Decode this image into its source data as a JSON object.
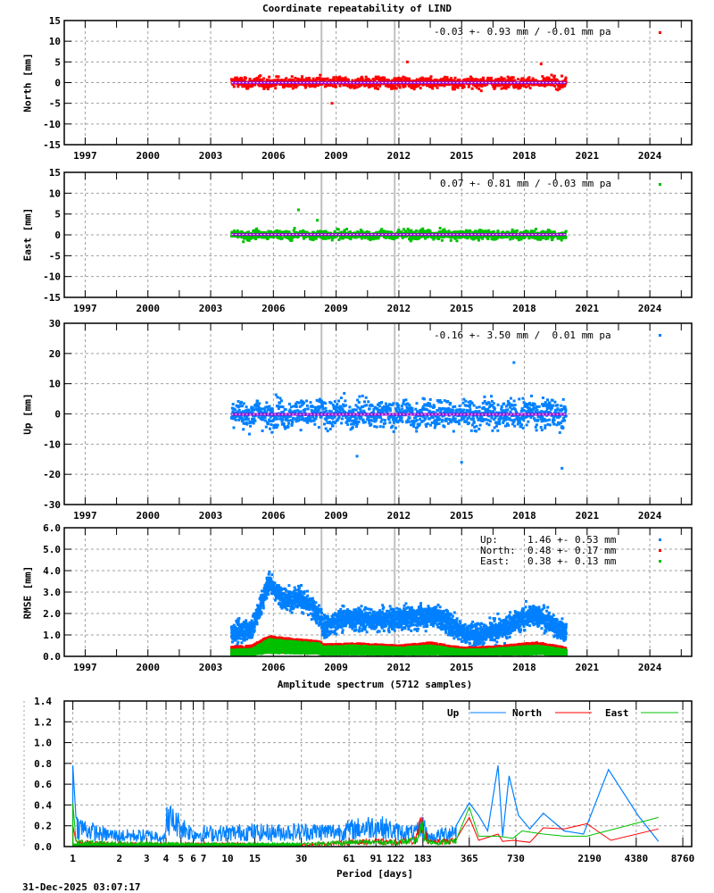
{
  "figure": {
    "title": "Coordinate repeatability of LIND",
    "timestamp": "31-Dec-2025 03:07:17"
  },
  "colors": {
    "north": "#ff0000",
    "east": "#00c000",
    "up": "#0080ff",
    "mean_line": "#9400d3",
    "break_line": "#c0c0c0",
    "grid": "#a0a0a0"
  },
  "chart_data": [
    {
      "type": "scatter",
      "panel": "north",
      "ylabel": "North [mm]",
      "ylim": [
        -15,
        15
      ],
      "yticks": [
        15,
        10,
        5,
        0,
        -5,
        -10,
        -15
      ],
      "xlim": [
        1996.0,
        2026.0
      ],
      "xticks": [
        1997,
        2000,
        2003,
        2006,
        2009,
        2012,
        2015,
        2018,
        2021,
        2024
      ],
      "data_range": [
        2004.0,
        2020.0
      ],
      "stats_label": "-0.03 +- 0.93 mm / -0.01 mm pa",
      "mean": -0.03,
      "std": 0.93,
      "trend_mm_pa": -0.01,
      "typical_spread": [
        -3,
        3
      ],
      "outliers": [
        [
          2008.8,
          -5.0
        ],
        [
          2012.4,
          5.0
        ],
        [
          2018.8,
          4.5
        ]
      ],
      "grid": true
    },
    {
      "type": "scatter",
      "panel": "east",
      "ylabel": "East [mm]",
      "ylim": [
        -15,
        15
      ],
      "yticks": [
        15,
        10,
        5,
        0,
        -5,
        -10,
        -15
      ],
      "xlim": [
        1996.0,
        2026.0
      ],
      "xticks": [
        1997,
        2000,
        2003,
        2006,
        2009,
        2012,
        2015,
        2018,
        2021,
        2024
      ],
      "data_range": [
        2004.0,
        2020.0
      ],
      "stats_label": "0.07 +- 0.81 mm / -0.03 mm pa",
      "mean": 0.07,
      "std": 0.81,
      "trend_mm_pa": -0.03,
      "typical_spread": [
        -2.5,
        2.5
      ],
      "outliers": [
        [
          2007.2,
          6.0
        ],
        [
          2008.1,
          3.5
        ]
      ],
      "grid": true
    },
    {
      "type": "scatter",
      "panel": "up",
      "ylabel": "Up [mm]",
      "ylim": [
        -30,
        30
      ],
      "yticks": [
        30,
        20,
        10,
        0,
        -10,
        -20,
        -30
      ],
      "xlim": [
        1996.0,
        2026.0
      ],
      "xticks": [
        1997,
        2000,
        2003,
        2006,
        2009,
        2012,
        2015,
        2018,
        2021,
        2024
      ],
      "data_range": [
        2004.0,
        2020.0
      ],
      "stats_label": "-0.16 +- 3.50 mm /  0.01 mm pa",
      "mean": -0.16,
      "std": 3.5,
      "trend_mm_pa": 0.01,
      "typical_spread": [
        -9,
        9
      ],
      "outliers": [
        [
          2017.5,
          17.0
        ],
        [
          2015.0,
          -16.0
        ],
        [
          2019.8,
          -18.0
        ],
        [
          2010.0,
          -14.0
        ]
      ],
      "grid": true
    },
    {
      "type": "scatter",
      "panel": "rmse",
      "ylabel": "RMSE [mm]",
      "ylim": [
        0.0,
        6.0
      ],
      "yticks": [
        "6.0",
        "5.0",
        "4.0",
        "3.0",
        "2.0",
        "1.0",
        "0.0"
      ],
      "xlim": [
        1996.0,
        2026.0
      ],
      "xticks": [
        1997,
        2000,
        2003,
        2006,
        2009,
        2012,
        2015,
        2018,
        2021,
        2024
      ],
      "legend": [
        {
          "name": "Up:",
          "value": "1.46 +- 0.53 mm",
          "color": "#0080ff"
        },
        {
          "name": "North:",
          "value": "0.48 +- 0.17 mm",
          "color": "#ff0000"
        },
        {
          "name": "East:",
          "value": "0.38 +- 0.13 mm",
          "color": "#00c000"
        }
      ],
      "series": [
        {
          "name": "Up",
          "x": [
            2004.0,
            2005.0,
            2005.8,
            2006.5,
            2007.2,
            2008.2,
            2008.4,
            2009.5,
            2011.0,
            2012.5,
            2013.8,
            2015.0,
            2015.2,
            2016.5,
            2018.5,
            2020.0
          ],
          "values": [
            1.1,
            1.3,
            3.5,
            2.6,
            2.8,
            1.9,
            1.4,
            1.8,
            1.7,
            1.8,
            1.9,
            1.2,
            1.0,
            1.1,
            2.0,
            1.1
          ]
        },
        {
          "name": "North",
          "x": [
            2004.0,
            2005.0,
            2005.8,
            2007.0,
            2008.2,
            2008.4,
            2010.0,
            2012.0,
            2013.5,
            2015.0,
            2016.5,
            2018.6,
            2020.0
          ],
          "values": [
            0.45,
            0.5,
            0.95,
            0.8,
            0.7,
            0.55,
            0.6,
            0.5,
            0.65,
            0.4,
            0.45,
            0.65,
            0.4
          ]
        },
        {
          "name": "East",
          "x": [
            2004.0,
            2005.0,
            2005.8,
            2007.0,
            2008.2,
            2008.4,
            2010.0,
            2012.0,
            2013.5,
            2015.0,
            2016.5,
            2018.6,
            2020.0
          ],
          "values": [
            0.3,
            0.35,
            0.8,
            0.7,
            0.6,
            0.45,
            0.5,
            0.4,
            0.5,
            0.3,
            0.35,
            0.5,
            0.3
          ]
        }
      ],
      "grid": true
    },
    {
      "type": "line",
      "panel": "spectrum",
      "title": "Amplitude spectrum (5712 samples)",
      "xlabel": "Period [days]",
      "ylabel": "",
      "xscale": "log",
      "xlim": [
        0.88,
        10000
      ],
      "ylim": [
        0.0,
        1.4
      ],
      "yticks": [
        "1.4",
        "1.2",
        "1.0",
        "0.8",
        "0.6",
        "0.4",
        "0.2",
        "0.0"
      ],
      "xticks": [
        1,
        2,
        3,
        4,
        5,
        6,
        7,
        10,
        15,
        30,
        61,
        91,
        122,
        183,
        365,
        730,
        2190,
        4380,
        8760
      ],
      "legend_position": "top-right",
      "series": [
        {
          "name": "Up",
          "color": "#0080ff",
          "x": [
            1,
            1.05,
            1.5,
            2,
            3,
            4,
            4.05,
            6,
            10,
            14,
            15,
            20,
            30,
            50,
            61,
            91,
            122,
            165,
            183,
            200,
            250,
            300,
            365,
            420,
            480,
            560,
            600,
            660,
            760,
            900,
            1100,
            1500,
            2000,
            2900,
            4500,
            6100
          ],
          "values": [
            0.78,
            0.25,
            0.15,
            0.13,
            0.13,
            0.12,
            0.35,
            0.15,
            0.16,
            0.18,
            0.17,
            0.17,
            0.18,
            0.18,
            0.2,
            0.25,
            0.18,
            0.16,
            0.25,
            0.1,
            0.15,
            0.2,
            0.42,
            0.3,
            0.15,
            0.78,
            0.1,
            0.68,
            0.3,
            0.17,
            0.32,
            0.15,
            0.12,
            0.74,
            0.3,
            0.05
          ]
        },
        {
          "name": "North",
          "color": "#ff0000",
          "x": [
            1,
            1.05,
            1.5,
            2,
            5,
            10,
            30,
            61,
            91,
            122,
            165,
            180,
            200,
            300,
            365,
            420,
            560,
            600,
            700,
            900,
            1100,
            1500,
            2100,
            3000,
            6100
          ],
          "values": [
            0.2,
            0.05,
            0.04,
            0.03,
            0.03,
            0.03,
            0.02,
            0.05,
            0.06,
            0.05,
            0.08,
            0.27,
            0.05,
            0.07,
            0.28,
            0.06,
            0.12,
            0.05,
            0.06,
            0.04,
            0.18,
            0.17,
            0.22,
            0.06,
            0.17
          ]
        },
        {
          "name": "East",
          "color": "#00c000",
          "x": [
            1,
            1.05,
            1.5,
            2,
            5,
            10,
            30,
            61,
            91,
            122,
            165,
            180,
            200,
            300,
            365,
            420,
            560,
            700,
            800,
            1100,
            1500,
            2100,
            3000,
            6100
          ],
          "values": [
            0.42,
            0.06,
            0.04,
            0.04,
            0.03,
            0.03,
            0.03,
            0.05,
            0.05,
            0.05,
            0.07,
            0.2,
            0.05,
            0.06,
            0.38,
            0.1,
            0.1,
            0.08,
            0.15,
            0.12,
            0.1,
            0.1,
            0.16,
            0.28
          ]
        }
      ],
      "grid": true
    }
  ],
  "labels": {
    "north_ylabel": "North [mm]",
    "east_ylabel": "East [mm]",
    "up_ylabel": "Up [mm]",
    "rmse_ylabel": "RMSE [mm]",
    "north_stats": "-0.03 +- 0.93 mm / -0.01 mm pa",
    "east_stats": "0.07 +- 0.81 mm / -0.03 mm pa",
    "up_stats": "-0.16 +- 3.50 mm /  0.01 mm pa",
    "rmse_up": "Up:     1.46 +- 0.53 mm",
    "rmse_north": "North:  0.48 +- 0.17 mm",
    "rmse_east": "East:   0.38 +- 0.13 mm",
    "spectrum_title": "Amplitude spectrum (5712 samples)",
    "spectrum_xlabel": "Period [days]",
    "legend_up": "Up",
    "legend_north": "North",
    "legend_east": "East"
  }
}
